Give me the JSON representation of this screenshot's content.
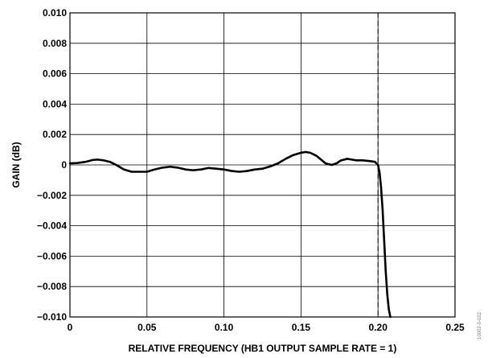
{
  "chart_data": {
    "type": "line",
    "title": "",
    "xlabel": "RELATIVE FREQUENCY (HB1 OUTPUT SAMPLE RATE = 1)",
    "ylabel": "GAIN (dB)",
    "xlim": [
      0,
      0.25
    ],
    "ylim": [
      -0.01,
      0.01
    ],
    "x_ticks": [
      0,
      0.05,
      0.1,
      0.15,
      0.2,
      0.25
    ],
    "x_tick_labels": [
      "0",
      "0.05",
      "0.10",
      "0.15",
      "0.20",
      "0.25"
    ],
    "y_ticks": [
      0.01,
      0.008,
      0.006,
      0.004,
      0.002,
      0,
      -0.002,
      -0.004,
      -0.006,
      -0.008,
      -0.01
    ],
    "y_tick_labels": [
      "0.010",
      "0.008",
      "0.006",
      "0.004",
      "0.002",
      "0",
      "−0.002",
      "−0.004",
      "−0.006",
      "−0.008",
      "−0.010"
    ],
    "grid": true,
    "series": [
      {
        "x": [
          0,
          0.005,
          0.01,
          0.015,
          0.018,
          0.022,
          0.026,
          0.03,
          0.035,
          0.04,
          0.045,
          0.05,
          0.055,
          0.06,
          0.065,
          0.07,
          0.075,
          0.08,
          0.085,
          0.09,
          0.095,
          0.1,
          0.105,
          0.11,
          0.115,
          0.12,
          0.125,
          0.13,
          0.135,
          0.14,
          0.145,
          0.15,
          0.153,
          0.156,
          0.16,
          0.163,
          0.166,
          0.17,
          0.173,
          0.176,
          0.18,
          0.183,
          0.186,
          0.19,
          0.195,
          0.198,
          0.2,
          0.201,
          0.202,
          0.203,
          0.204,
          0.205,
          0.206,
          0.207,
          0.208
        ],
        "y": [
          0.0001,
          0.00013,
          0.0002,
          0.00033,
          0.00035,
          0.0003,
          0.0002,
          0.0,
          -0.0003,
          -0.00045,
          -0.00045,
          -0.00045,
          -0.0003,
          -0.00018,
          -0.00012,
          -0.00018,
          -0.0003,
          -0.00035,
          -0.0003,
          -0.0002,
          -0.00025,
          -0.0003,
          -0.0004,
          -0.00045,
          -0.0004,
          -0.0003,
          -0.00025,
          -0.0001,
          0.0001,
          0.0004,
          0.00065,
          0.0008,
          0.00085,
          0.0008,
          0.0006,
          0.00035,
          0.0001,
          0.0,
          0.0001,
          0.0003,
          0.0004,
          0.00035,
          0.0003,
          0.0003,
          0.00025,
          0.0002,
          0.0,
          -0.0005,
          -0.0015,
          -0.003,
          -0.005,
          -0.007,
          -0.0085,
          -0.0095,
          -0.01
        ]
      }
    ],
    "annotations": [
      {
        "type": "vertical-dashed-line",
        "x": 0.2
      }
    ],
    "colors": {
      "line": "#000000",
      "grid": "#000000",
      "background": "#ffffff"
    }
  },
  "side_note": "10002-0-022"
}
